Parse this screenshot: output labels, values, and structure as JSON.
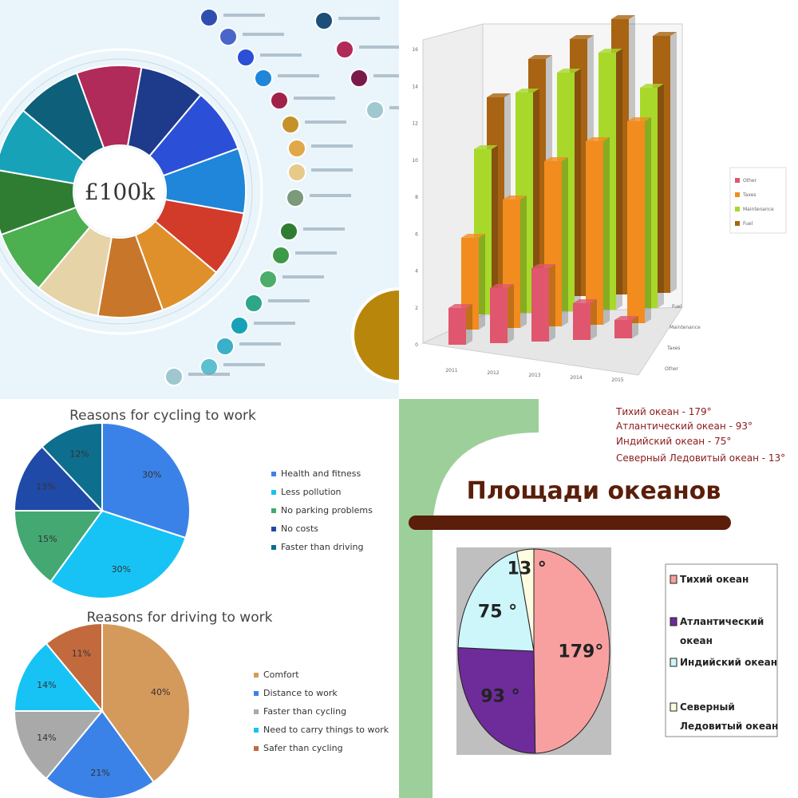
{
  "colors": {
    "infographic_bg": "#eaf5fb",
    "pie_bg_green": "#9dcf9a",
    "title_bar": "#5a1e0a"
  },
  "chart_data": [
    {
      "type": "pie",
      "title": "",
      "center_label": "£100k",
      "segment_colors": [
        "#b02a5a",
        "#1e3a8a",
        "#2b4fd6",
        "#1f86d9",
        "#d23a2a",
        "#e0902a",
        "#c8762a",
        "#e7d3a8",
        "#4caf50",
        "#2e7d32",
        "#17a2b8",
        "#0d5f7a"
      ]
    },
    {
      "type": "bar",
      "title": "",
      "categories": [
        "2011",
        "2012",
        "2013",
        "2014",
        "2015"
      ],
      "yticks": [
        "0",
        "2",
        "4",
        "6",
        "8",
        "10",
        "12",
        "14",
        "16"
      ],
      "ylim": [
        0,
        16
      ],
      "depth_labels": [
        "Fuel",
        "Maintenance",
        "Taxes",
        "Other"
      ],
      "series": [
        {
          "name": "Other",
          "color": "#e0566e",
          "values": [
            2,
            3,
            4,
            2,
            1
          ]
        },
        {
          "name": "Taxes",
          "color": "#f28c1e",
          "values": [
            5,
            7,
            9,
            10,
            11
          ]
        },
        {
          "name": "Maintenance",
          "color": "#a8d82a",
          "values": [
            9,
            12,
            13,
            14,
            12
          ]
        },
        {
          "name": "Fuel",
          "color": "#a86412",
          "values": [
            11,
            13,
            14,
            15,
            14
          ]
        }
      ],
      "legend": "right"
    },
    {
      "type": "pie",
      "title": "Reasons for cycling to work",
      "categories": [
        "Health and fitness",
        "Less pollution",
        "No parking problems",
        "No costs",
        "Faster than driving"
      ],
      "values": [
        30,
        30,
        15,
        13,
        12
      ],
      "labels": [
        "30%",
        "30%",
        "15%",
        "13%",
        "12%"
      ],
      "colors": [
        "#3b82e8",
        "#17c3f5",
        "#43a872",
        "#1f4aa8",
        "#0e6e8e"
      ],
      "legend": "right"
    },
    {
      "type": "pie",
      "title": "Reasons for driving to work",
      "categories": [
        "Comfort",
        "Distance to work",
        "Faster than cycling",
        "Need to carry things to work",
        "Safer than cycling"
      ],
      "values": [
        40,
        21,
        14,
        14,
        11
      ],
      "labels": [
        "40%",
        "21%",
        "14%",
        "14%",
        "11%"
      ],
      "colors": [
        "#d49a5c",
        "#3b82e8",
        "#a9a9a9",
        "#17c3f5",
        "#c26a3e"
      ],
      "legend": "right"
    },
    {
      "type": "pie",
      "title": "Площади океанов",
      "notes": [
        "Тихий океан - 179°",
        "Атлантический океан - 93°",
        "Индийский океан - 75°",
        "Северный Ледовитый океан - 13°"
      ],
      "categories": [
        "Тихий океан",
        "Атлантический океан",
        "Индийский океан",
        "Северный Ледовитый океан"
      ],
      "legend_lines": [
        [
          "Тихий океан"
        ],
        [
          "Атлантический",
          "океан"
        ],
        [
          "Индийский океан"
        ],
        [
          "Северный",
          "Ледовитый океан"
        ]
      ],
      "values": [
        179,
        93,
        75,
        13
      ],
      "labels": [
        "179°",
        "93 °",
        "75 °",
        "13 °"
      ],
      "colors": [
        "#f8a0a0",
        "#6e2b9a",
        "#cdf6fb",
        "#fdfbe0"
      ],
      "legend": "right"
    }
  ]
}
